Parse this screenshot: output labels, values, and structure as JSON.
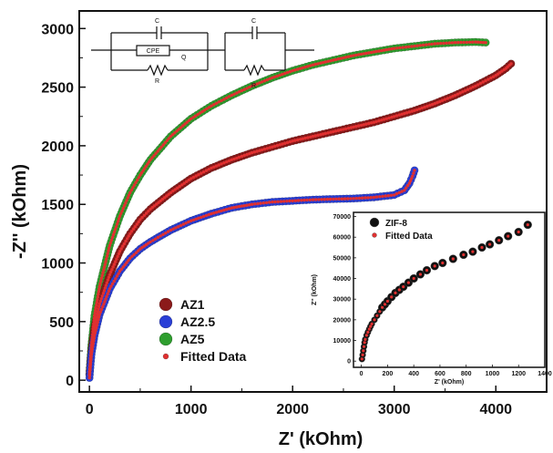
{
  "chart_data": [
    {
      "type": "scatter",
      "xlabel": "Z' (kOhm)",
      "ylabel": "-Z'' (kOhm)",
      "xlim": [
        -100,
        4500
      ],
      "ylim": [
        -100,
        3150
      ],
      "x_ticks": [
        0,
        1000,
        2000,
        3000,
        4000
      ],
      "x_tick_labels": [
        "0",
        "1000",
        "2000",
        "3000",
        "4000"
      ],
      "y_ticks": [
        0,
        500,
        1000,
        1500,
        2000,
        2500,
        3000
      ],
      "y_tick_labels": [
        "0",
        "500",
        "1000",
        "1500",
        "2000",
        "2500",
        "3000"
      ],
      "legend_position": "bottom-left",
      "legend": [
        "AZ1",
        "AZ2.5",
        "AZ5",
        "Fitted Data"
      ],
      "series": [
        {
          "name": "AZ1",
          "color": "#8b1a1a",
          "x": [
            0,
            20,
            50,
            100,
            200,
            300,
            400,
            500,
            600,
            800,
            1000,
            1200,
            1400,
            1600,
            1800,
            2000,
            2200,
            2400,
            2600,
            2800,
            3000,
            3200,
            3400,
            3600,
            3800,
            4000,
            4100,
            4150
          ],
          "y": [
            50,
            250,
            450,
            650,
            900,
            1100,
            1250,
            1370,
            1460,
            1600,
            1720,
            1810,
            1880,
            1940,
            1990,
            2040,
            2080,
            2120,
            2160,
            2200,
            2250,
            2300,
            2360,
            2430,
            2510,
            2600,
            2660,
            2700
          ]
        },
        {
          "name": "AZ2.5",
          "color": "#2a3fd6",
          "x": [
            0,
            20,
            50,
            100,
            200,
            300,
            400,
            500,
            600,
            700,
            800,
            1000,
            1200,
            1400,
            1600,
            1800,
            2000,
            2200,
            2400,
            2600,
            2800,
            3000,
            3100,
            3150,
            3180,
            3200
          ],
          "y": [
            20,
            220,
            380,
            560,
            780,
            930,
            1040,
            1120,
            1180,
            1230,
            1280,
            1360,
            1420,
            1470,
            1500,
            1520,
            1530,
            1540,
            1545,
            1550,
            1560,
            1580,
            1620,
            1680,
            1740,
            1790
          ]
        },
        {
          "name": "AZ5",
          "color": "#2e9e2e",
          "x": [
            0,
            20,
            50,
            100,
            200,
            300,
            400,
            500,
            600,
            800,
            1000,
            1200,
            1400,
            1600,
            1800,
            2000,
            2200,
            2400,
            2600,
            2800,
            3000,
            3200,
            3400,
            3600,
            3800,
            3900
          ],
          "y": [
            50,
            300,
            550,
            800,
            1150,
            1400,
            1600,
            1750,
            1880,
            2080,
            2230,
            2340,
            2430,
            2510,
            2580,
            2640,
            2690,
            2730,
            2770,
            2800,
            2830,
            2850,
            2870,
            2880,
            2885,
            2880
          ]
        }
      ],
      "fitted_data_color": "#e03030",
      "inset": {
        "type": "scatter",
        "xlabel": "Z' (kOhm)",
        "ylabel": "Z'' (kOhm)",
        "xlim": [
          -60,
          1400
        ],
        "ylim": [
          -3000,
          72000
        ],
        "x_ticks": [
          0,
          200,
          400,
          600,
          800,
          1000,
          1200,
          1400
        ],
        "x_tick_labels": [
          "0",
          "200",
          "400",
          "600",
          "800",
          "1000",
          "1200",
          "1400"
        ],
        "y_ticks": [
          0,
          10000,
          20000,
          30000,
          40000,
          50000,
          60000,
          70000
        ],
        "y_tick_labels": [
          "0",
          "10000",
          "20000",
          "30000",
          "40000",
          "50000",
          "60000",
          "70000"
        ],
        "legend": [
          "ZIF-8",
          "Fitted Data"
        ],
        "series": [
          {
            "name": "ZIF-8",
            "color": "#111111",
            "x": [
              5,
              10,
              15,
              20,
              25,
              30,
              40,
              50,
              60,
              70,
              80,
              100,
              120,
              140,
              160,
              180,
              200,
              230,
              260,
              290,
              320,
              360,
              400,
              450,
              500,
              560,
              620,
              700,
              780,
              850,
              920,
              980,
              1050,
              1120,
              1200,
              1270
            ],
            "y": [
              1000,
              3000,
              5000,
              7000,
              9000,
              10500,
              12500,
              14000,
              15500,
              16800,
              18000,
              20000,
              22000,
              24000,
              26000,
              27500,
              29000,
              31000,
              33000,
              34500,
              36000,
              38000,
              40000,
              42000,
              44000,
              46000,
              47500,
              49500,
              51500,
              53000,
              55000,
              56500,
              58500,
              60500,
              62500,
              66000
            ]
          }
        ]
      }
    }
  ],
  "circuit": {
    "left": {
      "c_label": "C",
      "cpe_label": "CPE",
      "q_label": "Q",
      "r_label": "R"
    },
    "right": {
      "c_label": "C",
      "r_label": "R"
    }
  }
}
